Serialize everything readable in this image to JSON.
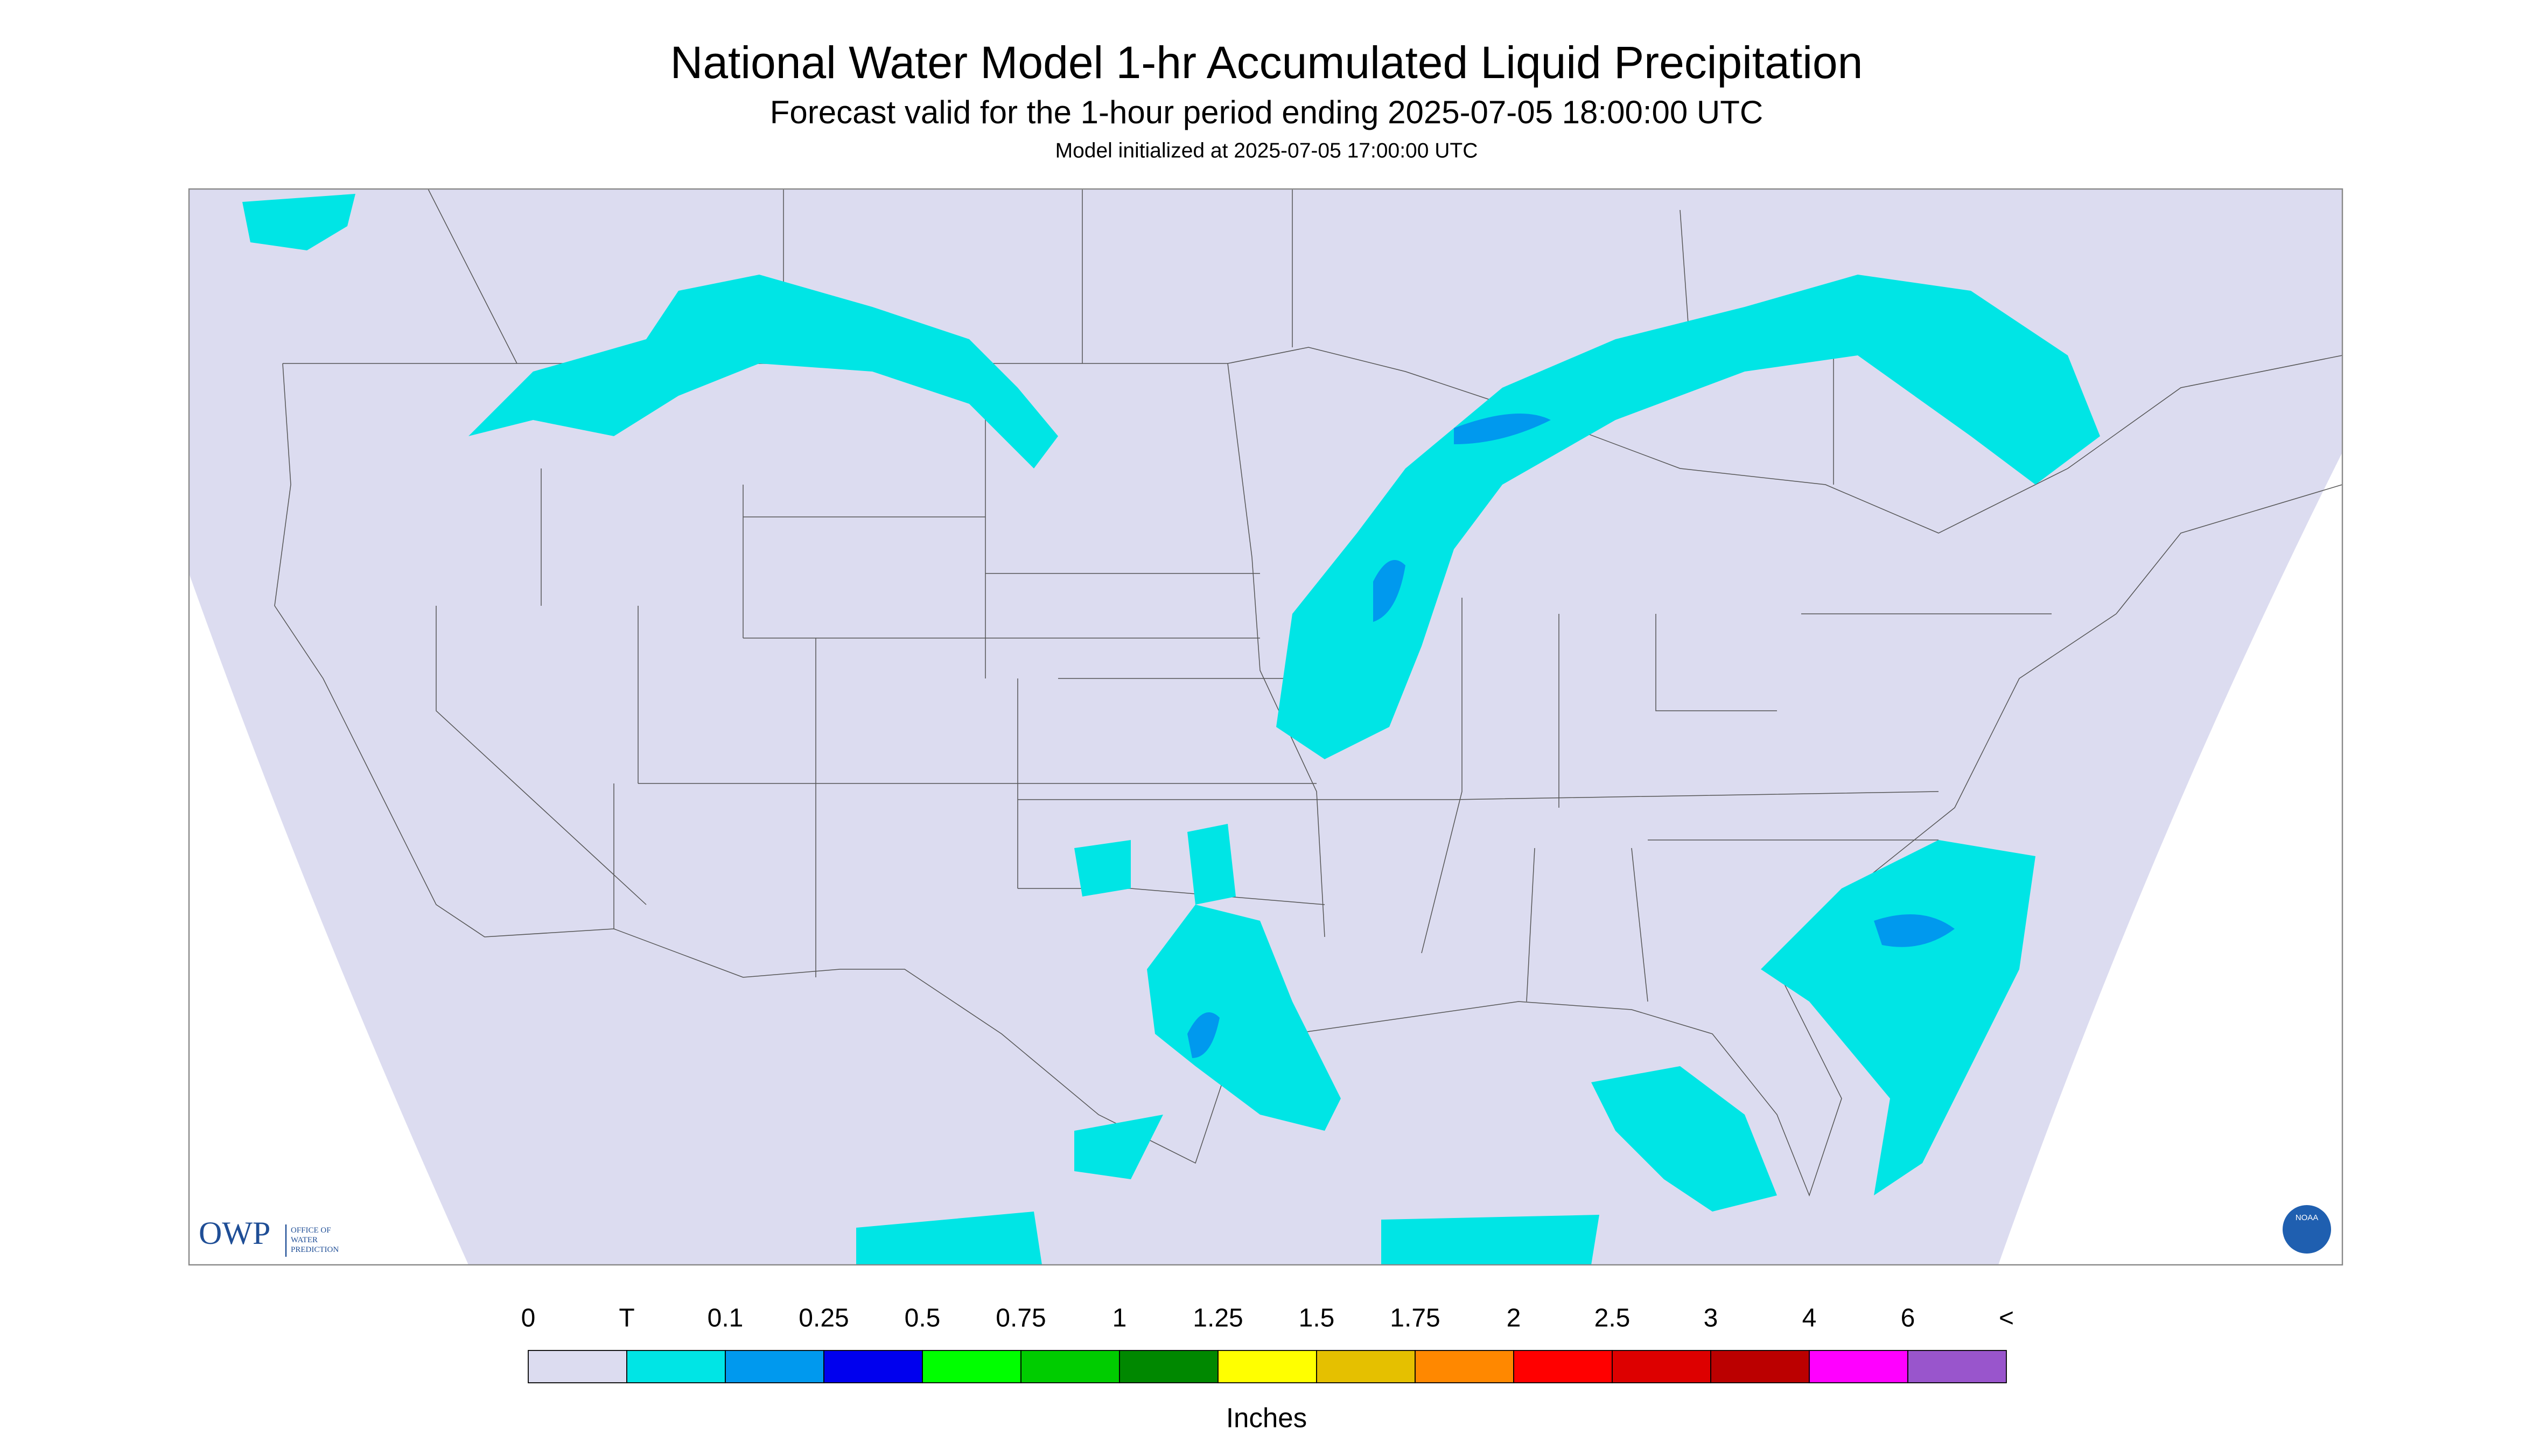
{
  "header": {
    "title": "National Water Model 1-hr Accumulated Liquid Precipitation",
    "subtitle": "Forecast valid for the 1-hour period ending 2025-07-05 18:00:00 UTC",
    "initialized": "Model initialized at 2025-07-05 17:00:00 UTC"
  },
  "logo": {
    "text": "OWP",
    "agency": [
      "OFFICE OF",
      "WATER",
      "PREDICTION"
    ],
    "badge": "NOAA"
  },
  "legend": {
    "labels": [
      "0",
      "T",
      "0.1",
      "0.25",
      "0.5",
      "0.75",
      "1",
      "1.25",
      "1.5",
      "1.75",
      "2",
      "2.5",
      "3",
      "4",
      "6",
      "<"
    ],
    "colors": [
      "#dcdcf0",
      "#00e5e5",
      "#0099ee",
      "#0000ee",
      "#00ff00",
      "#00cc00",
      "#008800",
      "#ffff00",
      "#e5c000",
      "#ff8800",
      "#ff0000",
      "#dd0000",
      "#bb0000",
      "#ff00ff",
      "#9955cc"
    ],
    "unit": "Inches"
  }
}
